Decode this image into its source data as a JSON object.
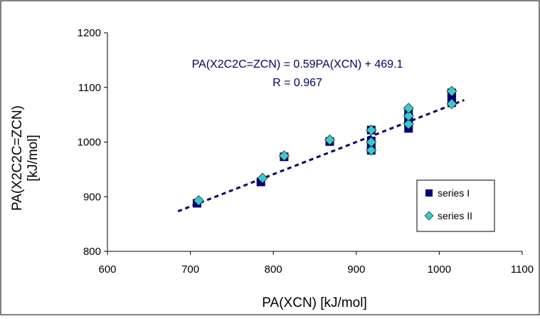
{
  "chart_data": {
    "type": "scatter",
    "title": "",
    "xlabel": "PA(XCN)  [kJ/mol]",
    "ylabel_lines": [
      "PA(X2C2C=ZCN)",
      "[kJ/mol]"
    ],
    "xlim": [
      600,
      1100
    ],
    "ylim": [
      800,
      1200
    ],
    "x_ticks": [
      600,
      700,
      800,
      900,
      1000,
      1100
    ],
    "y_ticks": [
      800,
      900,
      1000,
      1100,
      1200
    ],
    "grid": false,
    "legend_position": "right",
    "series": [
      {
        "name": "series I",
        "marker": "square",
        "color": "#000080",
        "points": [
          [
            708,
            888
          ],
          [
            785,
            927
          ],
          [
            813,
            973
          ],
          [
            868,
            1001
          ],
          [
            918,
            985
          ],
          [
            918,
            993
          ],
          [
            918,
            1002
          ],
          [
            918,
            1022
          ],
          [
            963,
            1025
          ],
          [
            963,
            1035
          ],
          [
            963,
            1045
          ],
          [
            963,
            1055
          ],
          [
            1015,
            1072
          ],
          [
            1015,
            1083
          ],
          [
            1015,
            1090
          ]
        ]
      },
      {
        "name": "series II",
        "marker": "diamond",
        "color": "#33CCCC",
        "points": [
          [
            710,
            893
          ],
          [
            787,
            934
          ],
          [
            813,
            975
          ],
          [
            868,
            1004
          ],
          [
            918,
            985
          ],
          [
            918,
            1000
          ],
          [
            918,
            1022
          ],
          [
            963,
            1033
          ],
          [
            963,
            1048
          ],
          [
            963,
            1062
          ],
          [
            1015,
            1070
          ],
          [
            1015,
            1093
          ]
        ]
      }
    ],
    "trendline": {
      "slope": 0.59,
      "intercept": 469.1,
      "x_range": [
        685,
        1030
      ],
      "color": "#000080"
    },
    "annotation": {
      "equation": "PA(X2C2C=ZCN) = 0.59PA(XCN) + 469.1",
      "r_value": "R = 0.967",
      "color": "#000080"
    }
  }
}
